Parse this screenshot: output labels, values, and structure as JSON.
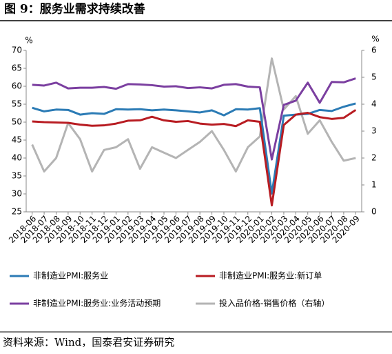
{
  "chart_data": {
    "type": "line",
    "title": "图 9：服务业需求持续改善",
    "source": "资料来源：Wind，国泰君安证券研究",
    "y_unit": "%",
    "y2_unit": "%",
    "categories": [
      "2018-06",
      "2018-07",
      "2018-08",
      "2018-09",
      "2018-10",
      "2018-11",
      "2018-12",
      "2019-01",
      "2019-02",
      "2019-03",
      "2019-04",
      "2019-05",
      "2019-06",
      "2019-07",
      "2019-08",
      "2019-09",
      "2019-10",
      "2019-11",
      "2019-12",
      "2020-01",
      "2020-02",
      "2020-03",
      "2020-04",
      "2020-05",
      "2020-06",
      "2020-07",
      "2020-08",
      "2020-09"
    ],
    "ylim": [
      25,
      70
    ],
    "yticks": [
      25,
      30,
      35,
      40,
      45,
      50,
      55,
      60,
      65,
      70
    ],
    "y2lim": [
      0,
      6
    ],
    "y2ticks": [
      0,
      1,
      2,
      3,
      4,
      5,
      6
    ],
    "legend": "bottom",
    "series": [
      {
        "name": "非制造业PMI:服务业",
        "color": "#2b7bb5",
        "values": [
          54.0,
          53.0,
          53.5,
          53.4,
          52.1,
          52.5,
          52.3,
          53.6,
          53.5,
          53.6,
          53.3,
          53.5,
          53.3,
          53.0,
          52.7,
          53.3,
          51.9,
          53.6,
          53.5,
          53.9,
          30.1,
          51.8,
          52.1,
          52.3,
          53.4,
          53.1,
          54.3,
          55.2
        ]
      },
      {
        "name": "非制造业PMI:服务业:新订单",
        "color": "#b81c22",
        "values": [
          50.2,
          50.0,
          49.9,
          49.8,
          49.3,
          49.0,
          49.1,
          49.6,
          50.4,
          50.5,
          51.5,
          50.5,
          50.1,
          50.3,
          49.6,
          49.3,
          49.5,
          48.9,
          50.5,
          50.1,
          26.8,
          49.2,
          52.1,
          52.6,
          51.4,
          50.9,
          51.2,
          53.4
        ]
      },
      {
        "name": "非制造业PMI:服务业:业务活动预期",
        "color": "#7b3fa0",
        "values": [
          60.4,
          60.2,
          61.0,
          59.4,
          59.6,
          59.6,
          59.8,
          59.3,
          60.6,
          60.5,
          60.3,
          59.9,
          60.0,
          59.5,
          59.7,
          59.4,
          60.4,
          60.6,
          59.9,
          59.7,
          39.6,
          54.8,
          56.0,
          61.0,
          55.4,
          61.2,
          61.1,
          62.2
        ]
      },
      {
        "name": "投入品价格-销售价格（右轴）",
        "color": "#b4b4b4",
        "axis": "y2",
        "values": [
          2.5,
          1.5,
          2.0,
          3.3,
          2.7,
          1.5,
          2.3,
          2.4,
          2.7,
          1.6,
          2.4,
          2.2,
          2.0,
          2.3,
          2.6,
          3.0,
          2.3,
          1.5,
          2.4,
          2.8,
          5.7,
          3.8,
          4.3,
          2.9,
          3.4,
          2.6,
          1.9,
          2.0
        ]
      }
    ]
  }
}
